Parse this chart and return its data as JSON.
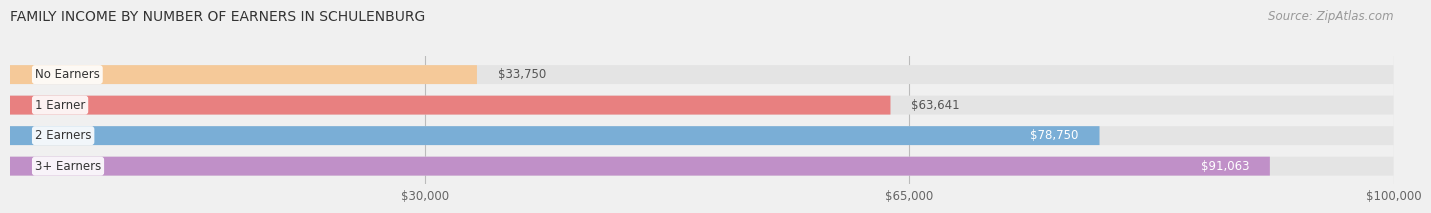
{
  "title": "FAMILY INCOME BY NUMBER OF EARNERS IN SCHULENBURG",
  "source": "Source: ZipAtlas.com",
  "categories": [
    "No Earners",
    "1 Earner",
    "2 Earners",
    "3+ Earners"
  ],
  "values": [
    33750,
    63641,
    78750,
    91063
  ],
  "bar_colors": [
    "#f5c999",
    "#e88080",
    "#7aaed6",
    "#c090c8"
  ],
  "label_colors": [
    "#333333",
    "#333333",
    "#ffffff",
    "#ffffff"
  ],
  "xmin": 0,
  "xmax": 100000,
  "xticks": [
    30000,
    65000,
    100000
  ],
  "xtick_labels": [
    "$30,000",
    "$65,000",
    "$100,000"
  ],
  "background_color": "#f0f0f0",
  "bar_background_color": "#e4e4e4",
  "title_fontsize": 10,
  "source_fontsize": 8.5,
  "label_fontsize": 8.5,
  "value_fontsize": 8.5,
  "category_fontsize": 8.5
}
